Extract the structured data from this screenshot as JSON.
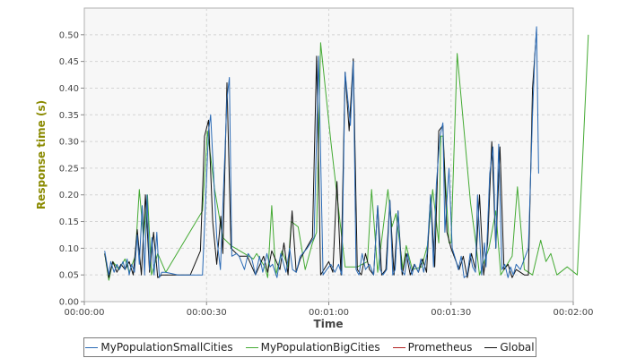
{
  "chart_data": {
    "type": "line",
    "title": "",
    "xlabel": "Time",
    "ylabel": "Response time (s)",
    "xlim": [
      0,
      120
    ],
    "ylim": [
      0,
      0.55
    ],
    "x_ticks": [
      {
        "value": 0,
        "label": "00:00:00"
      },
      {
        "value": 30,
        "label": "00:00:30"
      },
      {
        "value": 60,
        "label": "00:01:00"
      },
      {
        "value": 90,
        "label": "00:01:30"
      },
      {
        "value": 120,
        "label": "00:02:00"
      }
    ],
    "y_ticks": [
      {
        "value": 0.0,
        "label": "0.00"
      },
      {
        "value": 0.05,
        "label": "0.05"
      },
      {
        "value": 0.1,
        "label": "0.10"
      },
      {
        "value": 0.15,
        "label": "0.15"
      },
      {
        "value": 0.2,
        "label": "0.20"
      },
      {
        "value": 0.25,
        "label": "0.25"
      },
      {
        "value": 0.3,
        "label": "0.30"
      },
      {
        "value": 0.35,
        "label": "0.35"
      },
      {
        "value": 0.4,
        "label": "0.40"
      },
      {
        "value": 0.45,
        "label": "0.45"
      },
      {
        "value": 0.5,
        "label": "0.50"
      }
    ],
    "grid": true,
    "legend_position": "bottom",
    "series": [
      {
        "name": "MyPopulationSmallCities",
        "color": "#2a6ab5",
        "points": [
          [
            5,
            0.095
          ],
          [
            6,
            0.05
          ],
          [
            6.5,
            0.075
          ],
          [
            7.3,
            0.055
          ],
          [
            8,
            0.07
          ],
          [
            8.6,
            0.06
          ],
          [
            9.5,
            0.075
          ],
          [
            10,
            0.06
          ],
          [
            10.5,
            0.08
          ],
          [
            11,
            0.05
          ],
          [
            11.6,
            0.07
          ],
          [
            12.3,
            0.055
          ],
          [
            13,
            0.125
          ],
          [
            13.5,
            0.07
          ],
          [
            14.2,
            0.18
          ],
          [
            14.8,
            0.05
          ],
          [
            15.4,
            0.2
          ],
          [
            16,
            0.06
          ],
          [
            16.6,
            0.12
          ],
          [
            17.1,
            0.05
          ],
          [
            17.8,
            0.13
          ],
          [
            18.4,
            0.045
          ],
          [
            19,
            0.055
          ],
          [
            20,
            0.055
          ],
          [
            23,
            0.05
          ],
          [
            29,
            0.05
          ],
          [
            30.5,
            0.32
          ],
          [
            31,
            0.35
          ],
          [
            32.5,
            0.12
          ],
          [
            33.4,
            0.06
          ],
          [
            35,
            0.38
          ],
          [
            35.6,
            0.42
          ],
          [
            36.2,
            0.085
          ],
          [
            37.4,
            0.09
          ],
          [
            38,
            0.085
          ],
          [
            39.3,
            0.06
          ],
          [
            40.2,
            0.09
          ],
          [
            41.1,
            0.08
          ],
          [
            42,
            0.05
          ],
          [
            43,
            0.085
          ],
          [
            43.8,
            0.055
          ],
          [
            44.8,
            0.09
          ],
          [
            45.6,
            0.065
          ],
          [
            46.2,
            0.07
          ],
          [
            47.3,
            0.045
          ],
          [
            48.2,
            0.09
          ],
          [
            49.5,
            0.055
          ],
          [
            50.4,
            0.1
          ],
          [
            51.1,
            0.06
          ],
          [
            52,
            0.055
          ],
          [
            53,
            0.085
          ],
          [
            54.7,
            0.1
          ],
          [
            56.4,
            0.12
          ],
          [
            57.5,
            0.46
          ],
          [
            58.6,
            0.05
          ],
          [
            59.5,
            0.06
          ],
          [
            60.5,
            0.07
          ],
          [
            61.5,
            0.055
          ],
          [
            62.4,
            0.07
          ],
          [
            63.2,
            0.05
          ],
          [
            64,
            0.43
          ],
          [
            65.3,
            0.33
          ],
          [
            66,
            0.45
          ],
          [
            66.7,
            0.06
          ],
          [
            67.4,
            0.05
          ],
          [
            68.2,
            0.09
          ],
          [
            69,
            0.06
          ],
          [
            70,
            0.07
          ],
          [
            71,
            0.05
          ],
          [
            72,
            0.18
          ],
          [
            72.6,
            0.06
          ],
          [
            73.3,
            0.05
          ],
          [
            74.2,
            0.06
          ],
          [
            75,
            0.19
          ],
          [
            75.7,
            0.05
          ],
          [
            76.3,
            0.06
          ],
          [
            77,
            0.17
          ],
          [
            77.8,
            0.06
          ],
          [
            78.6,
            0.05
          ],
          [
            79.3,
            0.09
          ],
          [
            80.4,
            0.05
          ],
          [
            81.1,
            0.07
          ],
          [
            82,
            0.055
          ],
          [
            82.6,
            0.08
          ],
          [
            83.3,
            0.055
          ],
          [
            84.1,
            0.09
          ],
          [
            85,
            0.2
          ],
          [
            85.7,
            0.065
          ],
          [
            86.4,
            0.22
          ],
          [
            87.3,
            0.31
          ],
          [
            88,
            0.335
          ],
          [
            88.5,
            0.13
          ],
          [
            89.5,
            0.25
          ],
          [
            90.3,
            0.1
          ],
          [
            91.1,
            0.08
          ],
          [
            91.8,
            0.06
          ],
          [
            92.5,
            0.085
          ],
          [
            93.2,
            0.045
          ],
          [
            94,
            0.05
          ],
          [
            94.7,
            0.09
          ],
          [
            95.3,
            0.065
          ],
          [
            96,
            0.055
          ],
          [
            96.5,
            0.2
          ],
          [
            97.5,
            0.05
          ],
          [
            98.2,
            0.11
          ],
          [
            98.6,
            0.065
          ],
          [
            99.5,
            0.24
          ],
          [
            100.3,
            0.29
          ],
          [
            101,
            0.1
          ],
          [
            101.7,
            0.295
          ],
          [
            102.5,
            0.06
          ],
          [
            103.2,
            0.07
          ],
          [
            104,
            0.045
          ],
          [
            104.6,
            0.065
          ],
          [
            105.3,
            0.05
          ],
          [
            106,
            0.07
          ],
          [
            107,
            0.06
          ],
          [
            109,
            0.1
          ],
          [
            110,
            0.35
          ],
          [
            110.5,
            0.45
          ],
          [
            111,
            0.515
          ],
          [
            111.5,
            0.24
          ]
        ]
      },
      {
        "name": "MyPopulationBigCities",
        "color": "#44aa33",
        "points": [
          [
            5,
            0.09
          ],
          [
            6,
            0.04
          ],
          [
            7,
            0.075
          ],
          [
            8.5,
            0.06
          ],
          [
            10,
            0.08
          ],
          [
            11,
            0.055
          ],
          [
            12.5,
            0.085
          ],
          [
            13.5,
            0.21
          ],
          [
            14.5,
            0.12
          ],
          [
            15.5,
            0.2
          ],
          [
            16.5,
            0.05
          ],
          [
            18,
            0.09
          ],
          [
            20,
            0.055
          ],
          [
            29,
            0.17
          ],
          [
            30.2,
            0.32
          ],
          [
            32,
            0.21
          ],
          [
            34,
            0.12
          ],
          [
            36,
            0.105
          ],
          [
            41.5,
            0.08
          ],
          [
            42.3,
            0.09
          ],
          [
            44.3,
            0.065
          ],
          [
            45,
            0.045
          ],
          [
            46,
            0.18
          ],
          [
            47,
            0.05
          ],
          [
            48.5,
            0.095
          ],
          [
            50,
            0.065
          ],
          [
            50.8,
            0.15
          ],
          [
            52.5,
            0.14
          ],
          [
            54.2,
            0.06
          ],
          [
            56,
            0.11
          ],
          [
            57,
            0.13
          ],
          [
            58,
            0.485
          ],
          [
            60.5,
            0.3
          ],
          [
            62,
            0.2
          ],
          [
            64,
            0.065
          ],
          [
            67,
            0.065
          ],
          [
            69.5,
            0.075
          ],
          [
            70.5,
            0.21
          ],
          [
            72,
            0.055
          ],
          [
            74.5,
            0.21
          ],
          [
            75.5,
            0.14
          ],
          [
            76.5,
            0.165
          ],
          [
            78.2,
            0.06
          ],
          [
            79,
            0.105
          ],
          [
            80.5,
            0.06
          ],
          [
            82.8,
            0.065
          ],
          [
            84.2,
            0.105
          ],
          [
            85.5,
            0.21
          ],
          [
            87,
            0.11
          ],
          [
            87.5,
            0.31
          ],
          [
            88,
            0.31
          ],
          [
            89.5,
            0.11
          ],
          [
            90,
            0.11
          ],
          [
            91.5,
            0.465
          ],
          [
            94.8,
            0.185
          ],
          [
            96,
            0.115
          ],
          [
            97,
            0.05
          ],
          [
            99.3,
            0.1
          ],
          [
            101,
            0.17
          ],
          [
            102.2,
            0.05
          ],
          [
            105,
            0.085
          ],
          [
            106.3,
            0.215
          ],
          [
            108,
            0.06
          ],
          [
            110,
            0.05
          ],
          [
            112,
            0.115
          ],
          [
            113.3,
            0.075
          ],
          [
            114.5,
            0.09
          ],
          [
            116,
            0.05
          ],
          [
            118.5,
            0.065
          ],
          [
            121,
            0.05
          ],
          [
            123.7,
            0.5
          ]
        ]
      },
      {
        "name": "Prometheus",
        "color": "#b22222",
        "points": []
      },
      {
        "name": "Global",
        "color": "#111111",
        "points": [
          [
            5,
            0.09
          ],
          [
            6,
            0.045
          ],
          [
            7,
            0.075
          ],
          [
            8,
            0.055
          ],
          [
            9,
            0.07
          ],
          [
            10,
            0.06
          ],
          [
            11,
            0.075
          ],
          [
            12,
            0.05
          ],
          [
            13,
            0.135
          ],
          [
            14,
            0.05
          ],
          [
            15,
            0.2
          ],
          [
            16,
            0.055
          ],
          [
            17,
            0.13
          ],
          [
            18,
            0.045
          ],
          [
            19,
            0.05
          ],
          [
            21,
            0.05
          ],
          [
            26,
            0.05
          ],
          [
            28.5,
            0.095
          ],
          [
            29.5,
            0.31
          ],
          [
            30.5,
            0.34
          ],
          [
            31.5,
            0.15
          ],
          [
            32.5,
            0.07
          ],
          [
            33.5,
            0.16
          ],
          [
            34,
            0.09
          ],
          [
            35,
            0.41
          ],
          [
            36,
            0.1
          ],
          [
            38,
            0.085
          ],
          [
            40,
            0.085
          ],
          [
            42,
            0.05
          ],
          [
            44,
            0.085
          ],
          [
            45,
            0.055
          ],
          [
            46,
            0.095
          ],
          [
            48,
            0.06
          ],
          [
            49,
            0.11
          ],
          [
            50,
            0.05
          ],
          [
            51,
            0.17
          ],
          [
            52,
            0.055
          ],
          [
            53,
            0.08
          ],
          [
            56,
            0.12
          ],
          [
            57,
            0.46
          ],
          [
            58,
            0.05
          ],
          [
            60,
            0.075
          ],
          [
            61,
            0.055
          ],
          [
            62,
            0.225
          ],
          [
            63,
            0.05
          ],
          [
            64,
            0.43
          ],
          [
            65,
            0.32
          ],
          [
            66,
            0.455
          ],
          [
            67,
            0.06
          ],
          [
            68,
            0.05
          ],
          [
            69,
            0.09
          ],
          [
            70,
            0.06
          ],
          [
            71,
            0.05
          ],
          [
            72,
            0.18
          ],
          [
            73,
            0.05
          ],
          [
            74,
            0.06
          ],
          [
            75,
            0.19
          ],
          [
            76,
            0.05
          ],
          [
            77,
            0.17
          ],
          [
            78,
            0.05
          ],
          [
            79,
            0.09
          ],
          [
            80,
            0.05
          ],
          [
            81,
            0.07
          ],
          [
            82,
            0.055
          ],
          [
            83,
            0.08
          ],
          [
            84,
            0.055
          ],
          [
            85,
            0.2
          ],
          [
            86,
            0.065
          ],
          [
            87,
            0.32
          ],
          [
            88,
            0.33
          ],
          [
            89,
            0.13
          ],
          [
            90,
            0.1
          ],
          [
            91,
            0.08
          ],
          [
            92,
            0.06
          ],
          [
            93,
            0.085
          ],
          [
            94,
            0.045
          ],
          [
            95,
            0.09
          ],
          [
            96,
            0.06
          ],
          [
            97,
            0.2
          ],
          [
            98,
            0.05
          ],
          [
            99,
            0.11
          ],
          [
            100,
            0.3
          ],
          [
            101,
            0.1
          ],
          [
            102,
            0.29
          ],
          [
            103,
            0.06
          ],
          [
            104,
            0.07
          ],
          [
            105,
            0.045
          ],
          [
            106,
            0.06
          ],
          [
            107,
            0.055
          ],
          [
            108,
            0.05
          ],
          [
            109,
            0.05
          ],
          [
            110,
            0.4
          ],
          [
            111,
            0.51
          ]
        ]
      }
    ]
  },
  "legend": {
    "items": [
      {
        "label": "MyPopulationSmallCities",
        "color": "#2a6ab5"
      },
      {
        "label": "MyPopulationBigCities",
        "color": "#44aa33"
      },
      {
        "label": "Prometheus",
        "color": "#b22222"
      },
      {
        "label": "Global",
        "color": "#111111"
      }
    ]
  }
}
